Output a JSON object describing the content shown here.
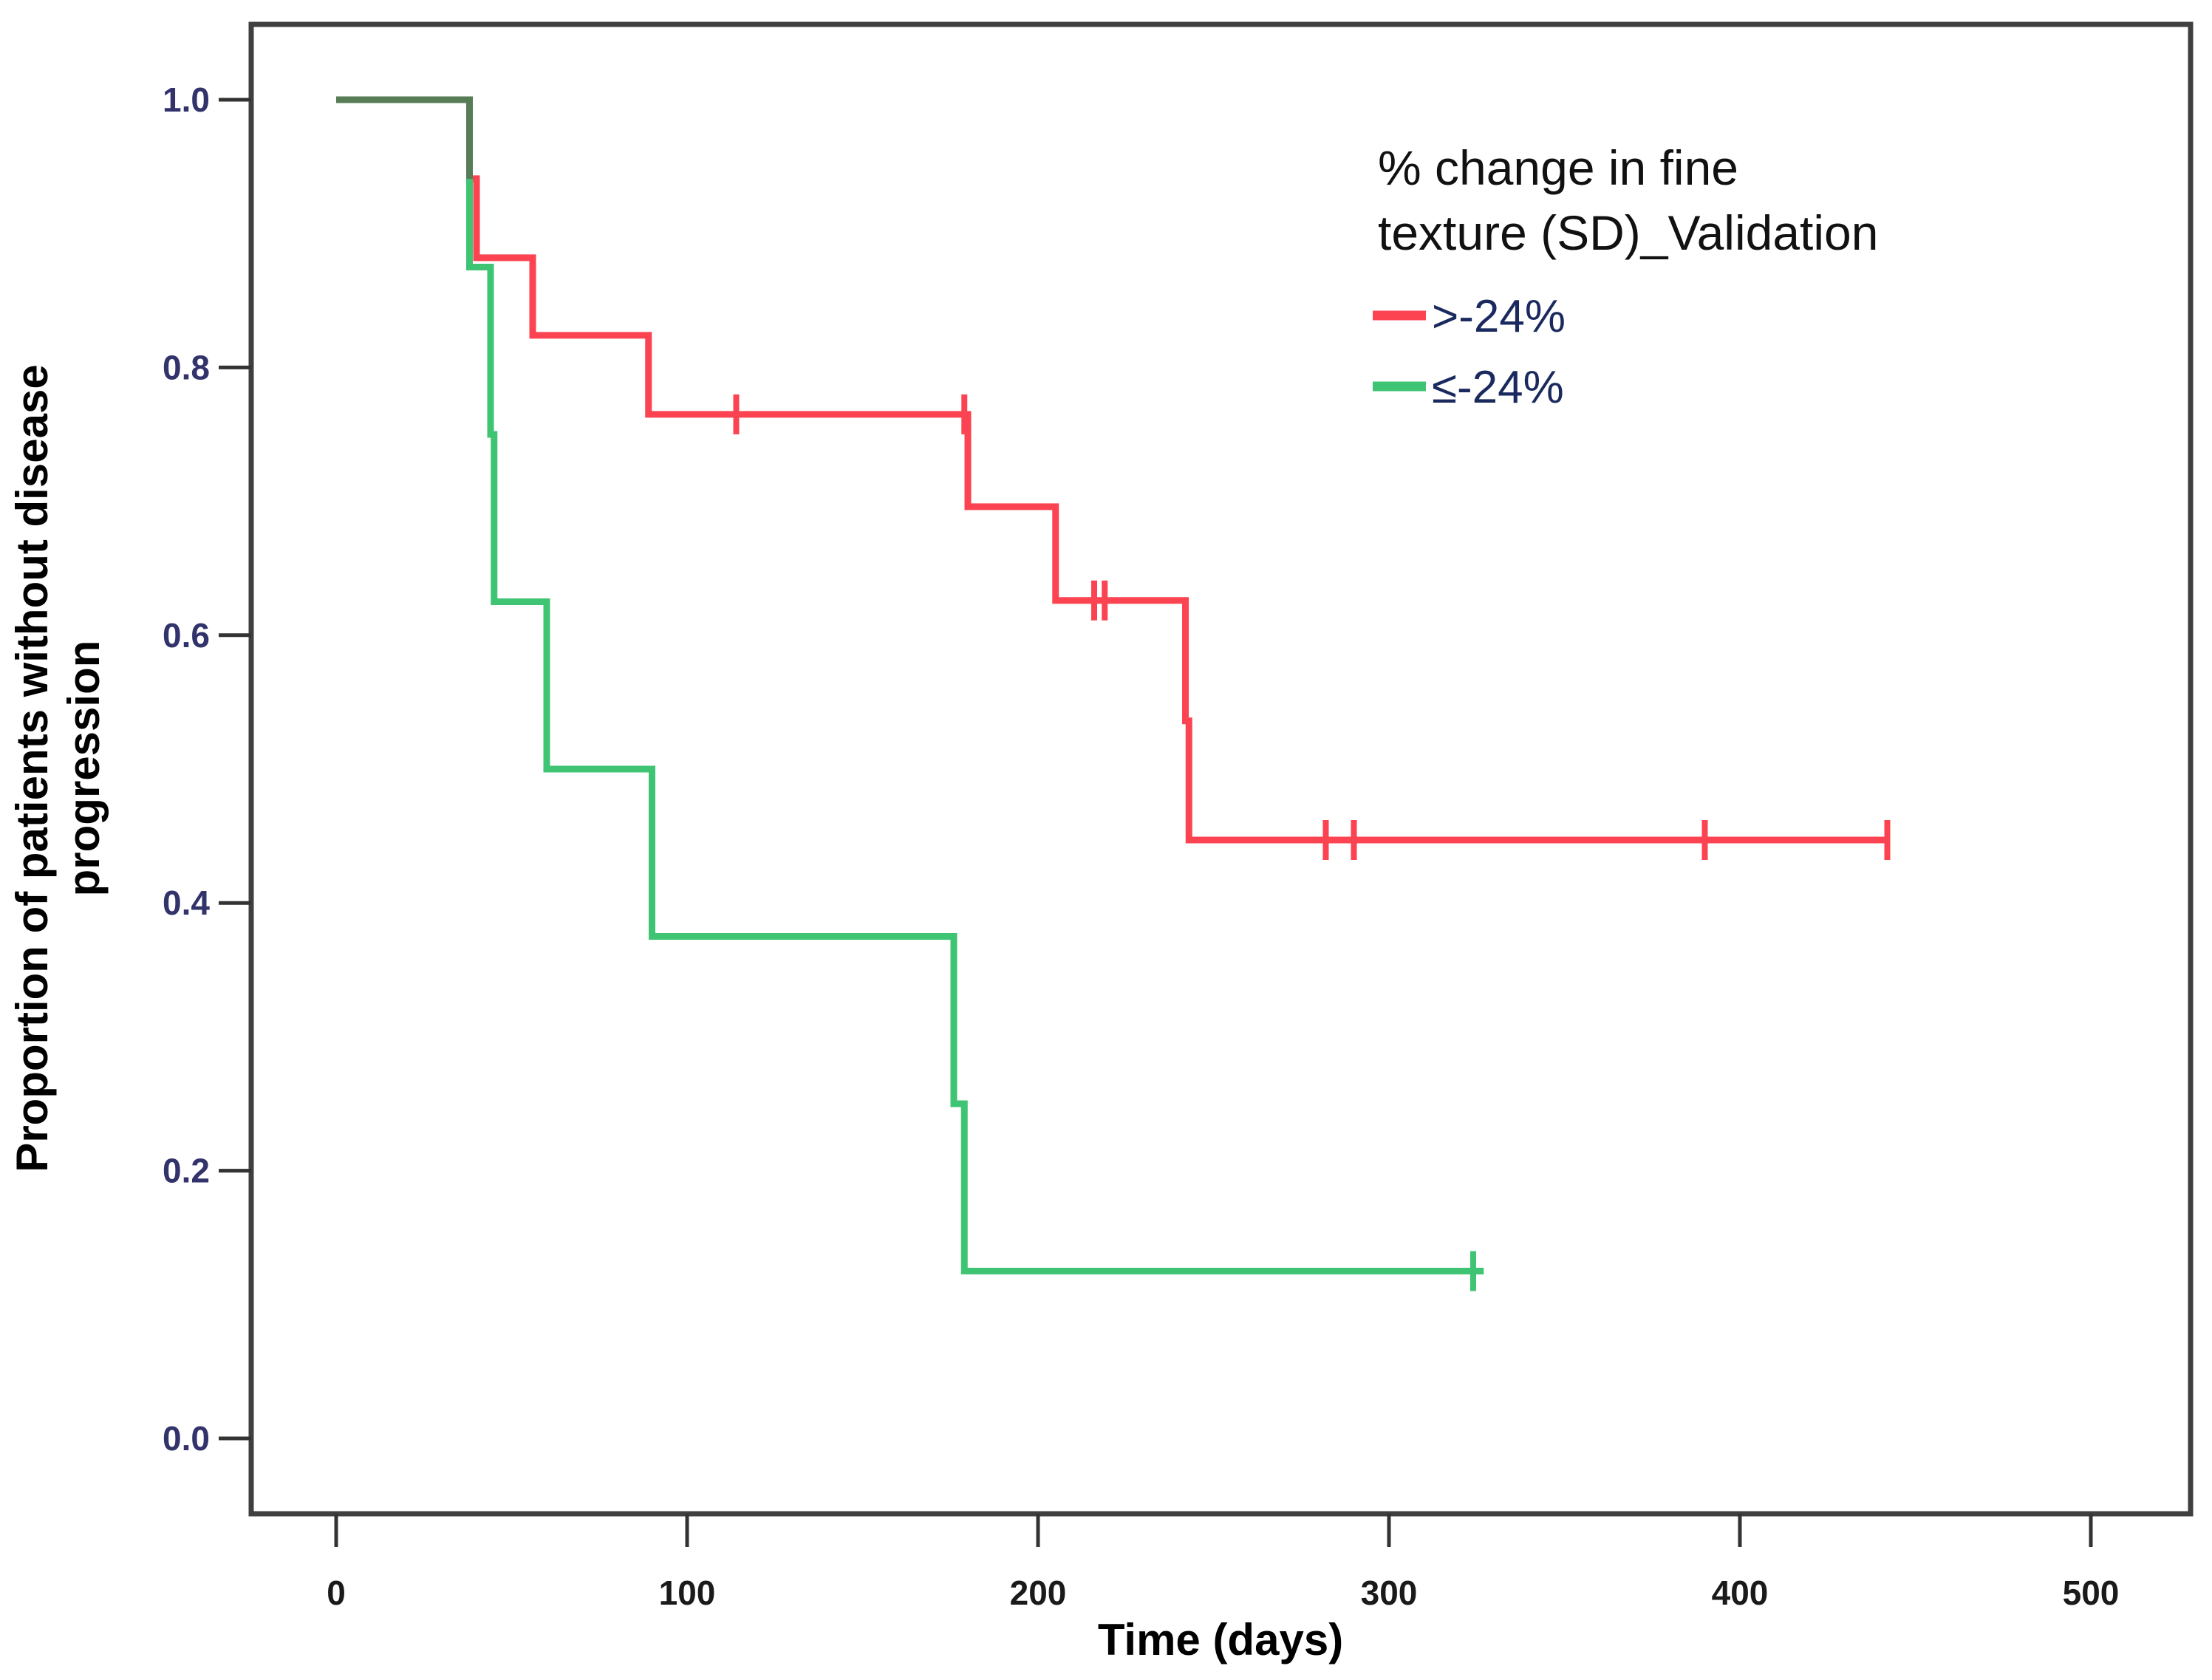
{
  "figure": {
    "x_axis_title": "Time (days)",
    "y_axis_title_line1": "Proportion of patients without disease",
    "y_axis_title_line2": "progression",
    "x_tick_labels": [
      "0",
      "100",
      "200",
      "300",
      "400",
      "500"
    ],
    "y_tick_labels": [
      "0.0",
      "0.2",
      "0.4",
      "0.6",
      "0.8",
      "1.0"
    ],
    "colors": {
      "curve_red": "#fb4351",
      "curve_green": "#3ec473",
      "curve_overlap": "#567d55",
      "frame": "#3f3f3f",
      "background": "#ffffff"
    }
  },
  "legend": {
    "title_line1": "% change in fine",
    "title_line2": "texture (SD)_Validation",
    "entries": [
      {
        "label": ">-24%",
        "color": "#fb4351"
      },
      {
        "label": "≤-24%",
        "color": "#3ec473"
      }
    ]
  },
  "chart_data": {
    "type": "line",
    "subtype": "kaplan_meier_step",
    "title": "",
    "xlabel": "Time (days)",
    "ylabel": "Proportion of patients without disease progression",
    "xlim": [
      0,
      500
    ],
    "ylim": [
      0.0,
      1.0
    ],
    "x_ticks": [
      0,
      100,
      200,
      300,
      400,
      500
    ],
    "y_ticks": [
      0.0,
      0.2,
      0.4,
      0.6,
      0.8,
      1.0
    ],
    "grid": false,
    "legend_position": "top-right-inside",
    "series": [
      {
        "name": ">-24%",
        "color": "#fb4351",
        "steps": [
          [
            0,
            1.0
          ],
          [
            38,
            0.941
          ],
          [
            40,
            0.882
          ],
          [
            56,
            0.824
          ],
          [
            89,
            0.765
          ],
          [
            180,
            0.696
          ],
          [
            205,
            0.626
          ],
          [
            242,
            0.536
          ],
          [
            243,
            0.447
          ]
        ],
        "end_time": 442,
        "censor_marks": [
          [
            114,
            0.765
          ],
          [
            179,
            0.765
          ],
          [
            216,
            0.626
          ],
          [
            219,
            0.626
          ],
          [
            282,
            0.447
          ],
          [
            290,
            0.447
          ],
          [
            390,
            0.447
          ],
          [
            442,
            0.447
          ]
        ]
      },
      {
        "name": "≤-24%",
        "color": "#3ec473",
        "steps": [
          [
            0,
            1.0
          ],
          [
            38,
            0.875
          ],
          [
            44,
            0.75
          ],
          [
            45,
            0.625
          ],
          [
            60,
            0.5
          ],
          [
            90,
            0.375
          ],
          [
            176,
            0.25
          ],
          [
            179,
            0.125
          ]
        ],
        "end_time": 327,
        "censor_marks": [
          [
            324,
            0.125
          ]
        ]
      }
    ]
  }
}
